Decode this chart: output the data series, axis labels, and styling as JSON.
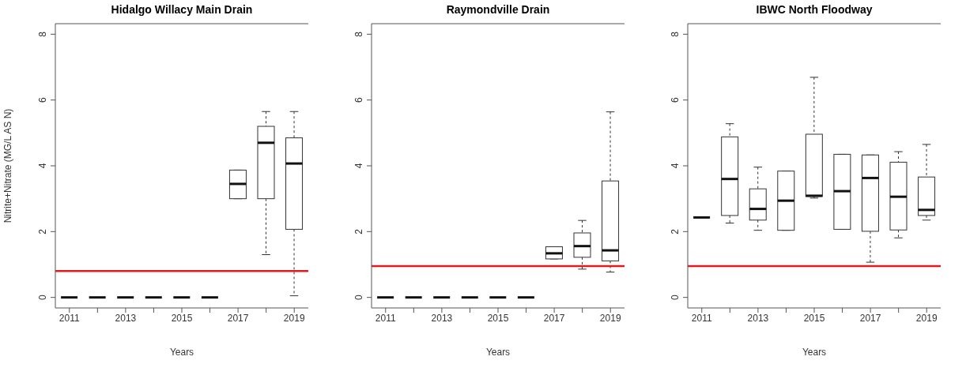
{
  "chart_data": [
    {
      "type": "box",
      "title": "Hidalgo Willacy Main Drain",
      "xlabel": "Years",
      "ylabel": "Nitrite+Nitrate (MG/L AS N)",
      "categories": [
        "2011",
        null,
        "2013",
        null,
        "2015",
        null,
        "2017",
        null,
        "2019"
      ],
      "boxes": [
        {
          "low": 0,
          "q1": 0,
          "median": 0,
          "q3": 0,
          "high": 0
        },
        {
          "low": 0,
          "q1": 0,
          "median": 0,
          "q3": 0,
          "high": 0
        },
        {
          "low": 0,
          "q1": 0,
          "median": 0,
          "q3": 0,
          "high": 0
        },
        {
          "low": 0,
          "q1": 0,
          "median": 0,
          "q3": 0,
          "high": 0
        },
        {
          "low": 0,
          "q1": 0,
          "median": 0,
          "q3": 0,
          "high": 0
        },
        {
          "low": 0,
          "q1": 0,
          "median": 0,
          "q3": 0,
          "high": 0
        },
        {
          "low": 3.0,
          "q1": 3.0,
          "median": 3.45,
          "q3": 3.87,
          "high": 3.87
        },
        {
          "low": 1.3,
          "q1": 3.0,
          "median": 4.7,
          "q3": 5.2,
          "high": 5.65
        },
        {
          "low": 0.05,
          "q1": 2.07,
          "median": 4.07,
          "q3": 4.85,
          "high": 5.65
        }
      ],
      "ylim": [
        -0.32,
        8.32
      ],
      "yticks": [
        0,
        2,
        4,
        6,
        8
      ],
      "grid": false,
      "ref_lines": [
        {
          "axis": "y",
          "value": 0.8,
          "color": "#e31a1c"
        }
      ]
    },
    {
      "type": "box",
      "title": "Raymondville Drain",
      "xlabel": "Years",
      "categories": [
        "2011",
        null,
        "2013",
        null,
        "2015",
        null,
        "2017",
        null,
        "2019"
      ],
      "boxes": [
        {
          "low": 0,
          "q1": 0,
          "median": 0,
          "q3": 0,
          "high": 0
        },
        {
          "low": 0,
          "q1": 0,
          "median": 0,
          "q3": 0,
          "high": 0
        },
        {
          "low": 0,
          "q1": 0,
          "median": 0,
          "q3": 0,
          "high": 0
        },
        {
          "low": 0,
          "q1": 0,
          "median": 0,
          "q3": 0,
          "high": 0
        },
        {
          "low": 0,
          "q1": 0,
          "median": 0,
          "q3": 0,
          "high": 0
        },
        {
          "low": 0,
          "q1": 0,
          "median": 0,
          "q3": 0,
          "high": 0
        },
        {
          "low": 1.17,
          "q1": 1.17,
          "median": 1.34,
          "q3": 1.54,
          "high": 1.54
        },
        {
          "low": 0.86,
          "q1": 1.22,
          "median": 1.56,
          "q3": 1.96,
          "high": 2.34
        },
        {
          "low": 0.77,
          "q1": 1.11,
          "median": 1.43,
          "q3": 3.54,
          "high": 5.64
        }
      ],
      "ylim": [
        -0.32,
        8.32
      ],
      "yticks": [
        0,
        2,
        4,
        6,
        8
      ],
      "grid": false,
      "ref_lines": [
        {
          "axis": "y",
          "value": 0.95,
          "color": "#e31a1c"
        }
      ]
    },
    {
      "type": "box",
      "title": "IBWC North Floodway",
      "xlabel": "Years",
      "categories": [
        "2011",
        null,
        "2013",
        null,
        "2015",
        null,
        "2017",
        null,
        "2019"
      ],
      "boxes": [
        {
          "low": 2.43,
          "q1": 2.43,
          "median": 2.43,
          "q3": 2.43,
          "high": 2.43
        },
        {
          "low": 2.26,
          "q1": 2.49,
          "median": 3.6,
          "q3": 4.88,
          "high": 5.28
        },
        {
          "low": 2.04,
          "q1": 2.35,
          "median": 2.69,
          "q3": 3.3,
          "high": 3.96
        },
        {
          "low": 2.04,
          "q1": 2.04,
          "median": 2.94,
          "q3": 3.84,
          "high": 3.84
        },
        {
          "low": 3.02,
          "q1": 3.07,
          "median": 3.09,
          "q3": 4.96,
          "high": 6.69
        },
        {
          "low": 2.07,
          "q1": 2.07,
          "median": 3.23,
          "q3": 4.35,
          "high": 4.35
        },
        {
          "low": 1.07,
          "q1": 2.01,
          "median": 3.63,
          "q3": 4.33,
          "high": 4.33
        },
        {
          "low": 1.81,
          "q1": 2.05,
          "median": 3.06,
          "q3": 4.11,
          "high": 4.43
        },
        {
          "low": 2.35,
          "q1": 2.49,
          "median": 2.66,
          "q3": 3.66,
          "high": 4.65
        }
      ],
      "ylim": [
        -0.32,
        8.32
      ],
      "yticks": [
        0,
        2,
        4,
        6,
        8
      ],
      "grid": false,
      "ref_lines": [
        {
          "axis": "y",
          "value": 0.95,
          "color": "#e31a1c"
        }
      ]
    }
  ]
}
